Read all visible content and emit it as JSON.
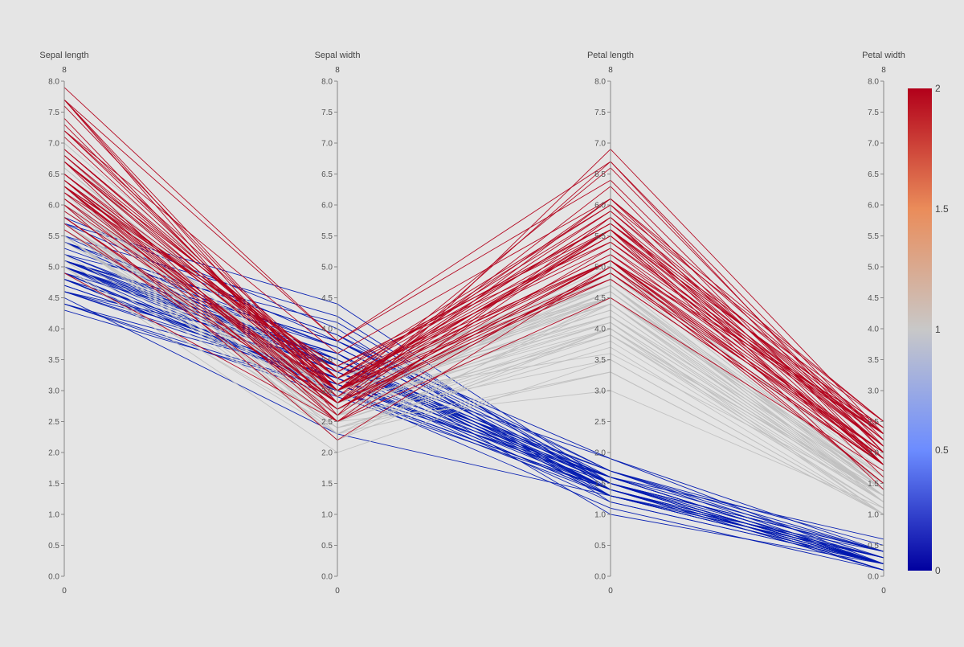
{
  "chart_data": {
    "type": "parallel_coordinates",
    "title": "",
    "dimensions": [
      {
        "name": "Sepal length",
        "range": [
          0,
          8
        ],
        "range_min_label": "0",
        "range_max_label": "8",
        "ticks": [
          "0.0",
          "0.5",
          "1.0",
          "1.5",
          "2.0",
          "2.5",
          "3.0",
          "3.5",
          "4.0",
          "4.5",
          "5.0",
          "5.5",
          "6.0",
          "6.5",
          "7.0",
          "7.5",
          "8.0"
        ]
      },
      {
        "name": "Sepal width",
        "range": [
          0,
          8
        ],
        "range_min_label": "0",
        "range_max_label": "8",
        "ticks": [
          "0.0",
          "0.5",
          "1.0",
          "1.5",
          "2.0",
          "2.5",
          "3.0",
          "3.5",
          "4.0",
          "4.5",
          "5.0",
          "5.5",
          "6.0",
          "6.5",
          "7.0",
          "7.5",
          "8.0"
        ]
      },
      {
        "name": "Petal length",
        "range": [
          0,
          8
        ],
        "range_min_label": "0",
        "range_max_label": "8",
        "ticks": [
          "0.0",
          "0.5",
          "1.0",
          "1.5",
          "2.0",
          "2.5",
          "3.0",
          "3.5",
          "4.0",
          "4.5",
          "5.0",
          "5.5",
          "6.0",
          "6.5",
          "7.0",
          "7.5",
          "8.0"
        ]
      },
      {
        "name": "Petal width",
        "range": [
          0,
          8
        ],
        "range_min_label": "0",
        "range_max_label": "8",
        "ticks": [
          "0.0",
          "0.5",
          "1.0",
          "1.5",
          "2.0",
          "2.5",
          "3.0",
          "3.5",
          "4.0",
          "4.5",
          "5.0",
          "5.5",
          "6.0",
          "6.5",
          "7.0",
          "7.5",
          "8.0"
        ]
      }
    ],
    "colorscale": {
      "range": [
        0,
        2
      ],
      "tick_labels": [
        "0",
        "0.5",
        "1",
        "1.5",
        "2"
      ],
      "colors": [
        "#00009f",
        "#6c8cff",
        "#c8c8c8",
        "#ea8c5a",
        "#b2001a"
      ]
    },
    "line_groups": [
      {
        "group": 0,
        "color": "#0019b0",
        "lines": [
          [
            5.1,
            3.5,
            1.4,
            0.2
          ],
          [
            4.9,
            3.0,
            1.4,
            0.2
          ],
          [
            4.7,
            3.2,
            1.3,
            0.2
          ],
          [
            4.6,
            3.1,
            1.5,
            0.2
          ],
          [
            5.0,
            3.6,
            1.4,
            0.2
          ],
          [
            5.4,
            3.9,
            1.7,
            0.4
          ],
          [
            4.6,
            3.4,
            1.4,
            0.3
          ],
          [
            5.0,
            3.4,
            1.5,
            0.2
          ],
          [
            4.4,
            2.9,
            1.4,
            0.2
          ],
          [
            4.9,
            3.1,
            1.5,
            0.1
          ],
          [
            5.4,
            3.7,
            1.5,
            0.2
          ],
          [
            4.8,
            3.4,
            1.6,
            0.2
          ],
          [
            4.8,
            3.0,
            1.4,
            0.1
          ],
          [
            4.3,
            3.0,
            1.1,
            0.1
          ],
          [
            5.8,
            4.0,
            1.2,
            0.2
          ],
          [
            5.7,
            4.4,
            1.5,
            0.4
          ],
          [
            5.4,
            3.9,
            1.3,
            0.4
          ],
          [
            5.1,
            3.5,
            1.4,
            0.3
          ],
          [
            5.7,
            3.8,
            1.7,
            0.3
          ],
          [
            5.1,
            3.8,
            1.5,
            0.3
          ],
          [
            5.4,
            3.4,
            1.7,
            0.2
          ],
          [
            5.1,
            3.7,
            1.5,
            0.4
          ],
          [
            4.6,
            3.6,
            1.0,
            0.2
          ],
          [
            5.1,
            3.3,
            1.7,
            0.5
          ],
          [
            4.8,
            3.4,
            1.9,
            0.2
          ],
          [
            5.0,
            3.0,
            1.6,
            0.2
          ],
          [
            5.0,
            3.4,
            1.6,
            0.4
          ],
          [
            5.2,
            3.5,
            1.5,
            0.2
          ],
          [
            5.2,
            3.4,
            1.4,
            0.2
          ],
          [
            4.7,
            3.2,
            1.6,
            0.2
          ],
          [
            4.8,
            3.1,
            1.6,
            0.2
          ],
          [
            5.4,
            3.4,
            1.5,
            0.4
          ],
          [
            5.2,
            4.1,
            1.5,
            0.1
          ],
          [
            5.5,
            4.2,
            1.4,
            0.2
          ],
          [
            4.9,
            3.1,
            1.5,
            0.2
          ],
          [
            5.0,
            3.2,
            1.2,
            0.2
          ],
          [
            5.5,
            3.5,
            1.3,
            0.2
          ],
          [
            4.9,
            3.6,
            1.4,
            0.1
          ],
          [
            4.4,
            3.0,
            1.3,
            0.2
          ],
          [
            5.1,
            3.4,
            1.5,
            0.2
          ],
          [
            5.0,
            3.5,
            1.3,
            0.3
          ],
          [
            4.5,
            2.3,
            1.3,
            0.3
          ],
          [
            4.4,
            3.2,
            1.3,
            0.2
          ],
          [
            5.0,
            3.5,
            1.6,
            0.6
          ],
          [
            5.1,
            3.8,
            1.9,
            0.4
          ],
          [
            4.8,
            3.0,
            1.4,
            0.3
          ],
          [
            5.1,
            3.8,
            1.6,
            0.2
          ],
          [
            4.6,
            3.2,
            1.4,
            0.2
          ],
          [
            5.3,
            3.7,
            1.5,
            0.2
          ],
          [
            5.0,
            3.3,
            1.4,
            0.2
          ]
        ]
      },
      {
        "group": 1,
        "color": "#c0c0c0",
        "lines": [
          [
            7.0,
            3.2,
            4.7,
            1.4
          ],
          [
            6.4,
            3.2,
            4.5,
            1.5
          ],
          [
            6.9,
            3.1,
            4.9,
            1.5
          ],
          [
            5.5,
            2.3,
            4.0,
            1.3
          ],
          [
            6.5,
            2.8,
            4.6,
            1.5
          ],
          [
            5.7,
            2.8,
            4.5,
            1.3
          ],
          [
            6.3,
            3.3,
            4.7,
            1.6
          ],
          [
            4.9,
            2.4,
            3.3,
            1.0
          ],
          [
            6.6,
            2.9,
            4.6,
            1.3
          ],
          [
            5.2,
            2.7,
            3.9,
            1.4
          ],
          [
            5.0,
            2.0,
            3.5,
            1.0
          ],
          [
            5.9,
            3.0,
            4.2,
            1.5
          ],
          [
            6.0,
            2.2,
            4.0,
            1.0
          ],
          [
            6.1,
            2.9,
            4.7,
            1.4
          ],
          [
            5.6,
            2.9,
            3.6,
            1.3
          ],
          [
            6.7,
            3.1,
            4.4,
            1.4
          ],
          [
            5.6,
            3.0,
            4.5,
            1.5
          ],
          [
            5.8,
            2.7,
            4.1,
            1.0
          ],
          [
            6.2,
            2.2,
            4.5,
            1.5
          ],
          [
            5.6,
            2.5,
            3.9,
            1.1
          ],
          [
            5.9,
            3.2,
            4.8,
            1.8
          ],
          [
            6.1,
            2.8,
            4.0,
            1.3
          ],
          [
            6.3,
            2.5,
            4.9,
            1.5
          ],
          [
            6.1,
            2.8,
            4.7,
            1.2
          ],
          [
            6.4,
            2.9,
            4.3,
            1.3
          ],
          [
            6.6,
            3.0,
            4.4,
            1.4
          ],
          [
            6.8,
            2.8,
            4.8,
            1.4
          ],
          [
            6.7,
            3.0,
            5.0,
            1.7
          ],
          [
            6.0,
            2.9,
            4.5,
            1.5
          ],
          [
            5.7,
            2.6,
            3.5,
            1.0
          ],
          [
            5.5,
            2.4,
            3.8,
            1.1
          ],
          [
            5.5,
            2.4,
            3.7,
            1.0
          ],
          [
            5.8,
            2.7,
            3.9,
            1.2
          ],
          [
            6.0,
            2.7,
            5.1,
            1.6
          ],
          [
            5.4,
            3.0,
            4.5,
            1.5
          ],
          [
            6.0,
            3.4,
            4.5,
            1.6
          ],
          [
            6.7,
            3.1,
            4.7,
            1.5
          ],
          [
            6.3,
            2.3,
            4.4,
            1.3
          ],
          [
            5.6,
            3.0,
            4.1,
            1.3
          ],
          [
            5.5,
            2.5,
            4.0,
            1.3
          ],
          [
            5.5,
            2.6,
            4.4,
            1.2
          ],
          [
            6.1,
            3.0,
            4.6,
            1.4
          ],
          [
            5.8,
            2.6,
            4.0,
            1.2
          ],
          [
            5.0,
            2.3,
            3.3,
            1.0
          ],
          [
            5.6,
            2.7,
            4.2,
            1.3
          ],
          [
            5.7,
            3.0,
            4.2,
            1.2
          ],
          [
            5.7,
            2.9,
            4.2,
            1.3
          ],
          [
            6.2,
            2.9,
            4.3,
            1.3
          ],
          [
            5.1,
            2.5,
            3.0,
            1.1
          ],
          [
            5.7,
            2.8,
            4.1,
            1.3
          ]
        ]
      },
      {
        "group": 2,
        "color": "#b2001a",
        "lines": [
          [
            6.3,
            3.3,
            6.0,
            2.5
          ],
          [
            5.8,
            2.7,
            5.1,
            1.9
          ],
          [
            7.1,
            3.0,
            5.9,
            2.1
          ],
          [
            6.3,
            2.9,
            5.6,
            1.8
          ],
          [
            6.5,
            3.0,
            5.8,
            2.2
          ],
          [
            7.6,
            3.0,
            6.6,
            2.1
          ],
          [
            4.9,
            2.5,
            4.5,
            1.7
          ],
          [
            7.3,
            2.9,
            6.3,
            1.8
          ],
          [
            6.7,
            2.5,
            5.8,
            1.8
          ],
          [
            7.2,
            3.6,
            6.1,
            2.5
          ],
          [
            6.5,
            3.2,
            5.1,
            2.0
          ],
          [
            6.4,
            2.7,
            5.3,
            1.9
          ],
          [
            6.8,
            3.0,
            5.5,
            2.1
          ],
          [
            5.7,
            2.5,
            5.0,
            2.0
          ],
          [
            5.8,
            2.8,
            5.1,
            2.4
          ],
          [
            6.4,
            3.2,
            5.3,
            2.3
          ],
          [
            6.5,
            3.0,
            5.5,
            1.8
          ],
          [
            7.7,
            3.8,
            6.7,
            2.2
          ],
          [
            7.7,
            2.6,
            6.9,
            2.3
          ],
          [
            6.0,
            2.2,
            5.0,
            1.5
          ],
          [
            6.9,
            3.2,
            5.7,
            2.3
          ],
          [
            5.6,
            2.8,
            4.9,
            2.0
          ],
          [
            7.7,
            2.8,
            6.7,
            2.0
          ],
          [
            6.3,
            2.7,
            4.9,
            1.8
          ],
          [
            6.7,
            3.3,
            5.7,
            2.1
          ],
          [
            7.2,
            3.2,
            6.0,
            1.8
          ],
          [
            6.2,
            2.8,
            4.8,
            1.8
          ],
          [
            6.1,
            3.0,
            4.9,
            1.8
          ],
          [
            6.4,
            2.8,
            5.6,
            2.1
          ],
          [
            7.2,
            3.0,
            5.8,
            1.6
          ],
          [
            7.4,
            2.8,
            6.1,
            1.9
          ],
          [
            7.9,
            3.8,
            6.4,
            2.0
          ],
          [
            6.4,
            2.8,
            5.6,
            2.2
          ],
          [
            6.3,
            2.8,
            5.1,
            1.5
          ],
          [
            6.1,
            2.6,
            5.6,
            1.4
          ],
          [
            7.7,
            3.0,
            6.1,
            2.3
          ],
          [
            6.3,
            3.4,
            5.6,
            2.4
          ],
          [
            6.4,
            3.1,
            5.5,
            1.8
          ],
          [
            6.0,
            3.0,
            4.8,
            1.8
          ],
          [
            6.9,
            3.1,
            5.4,
            2.1
          ],
          [
            6.7,
            3.1,
            5.6,
            2.4
          ],
          [
            6.9,
            3.1,
            5.1,
            2.3
          ],
          [
            5.8,
            2.7,
            5.1,
            1.9
          ],
          [
            6.8,
            3.2,
            5.9,
            2.3
          ],
          [
            6.7,
            3.3,
            5.7,
            2.5
          ],
          [
            6.7,
            3.0,
            5.2,
            2.3
          ],
          [
            6.3,
            2.5,
            5.0,
            1.9
          ],
          [
            6.5,
            3.0,
            5.2,
            2.0
          ],
          [
            6.2,
            3.4,
            5.4,
            2.3
          ],
          [
            5.9,
            3.0,
            5.1,
            1.8
          ]
        ]
      }
    ]
  }
}
